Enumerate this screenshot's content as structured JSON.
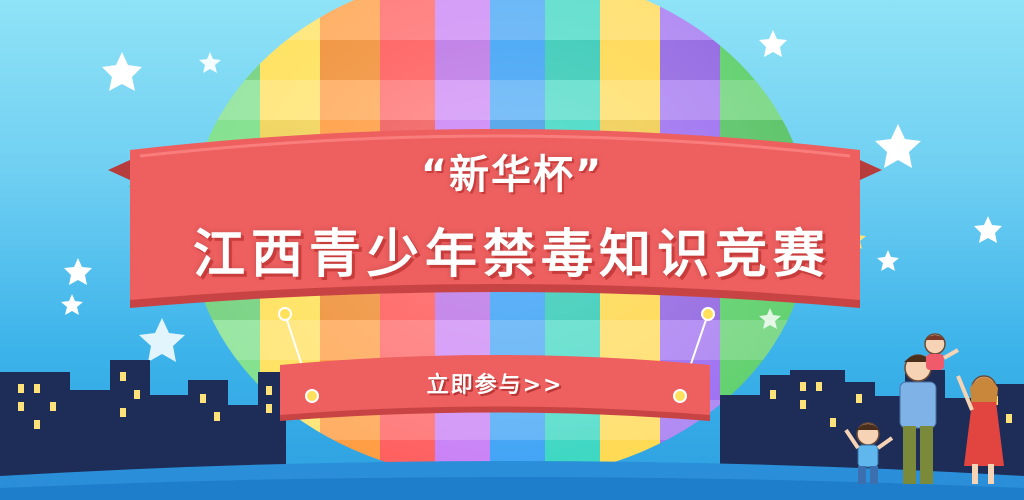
{
  "banner": {
    "title_line1": "“新华杯”",
    "title_line2": "江西青少年禁毒知识竞赛",
    "cta_label": "立即参与>>"
  },
  "colors": {
    "sky_top": "#8fe3f6",
    "sky_bottom": "#2d9fe0",
    "ribbon": "#ee5f5f",
    "ribbon_dark": "#c84444",
    "city": "#1d2d57",
    "window": "#ffe27a"
  },
  "icons": [
    "star-icon",
    "hot-air-balloon",
    "city-skyline",
    "family-illustration"
  ]
}
